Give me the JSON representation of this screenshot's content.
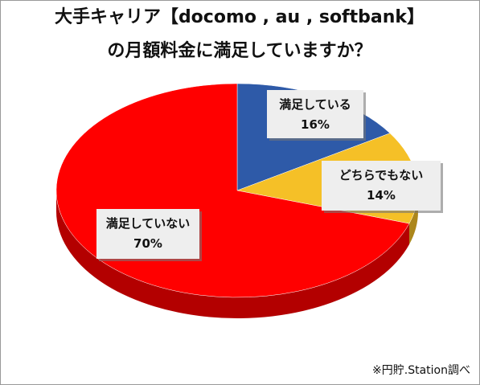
{
  "chart_data": {
    "type": "pie",
    "title": [
      "大手キャリア【docomo , au , softbank】",
      "の月額料金に満足していますか？"
    ],
    "categories": [
      "満足している",
      "どちらでもない",
      "満足していない"
    ],
    "values": [
      16,
      14,
      70
    ],
    "value_labels": [
      "16%",
      "14%",
      "70%"
    ],
    "colors": [
      "#2e5aa8",
      "#f5c027",
      "#ff0000"
    ],
    "source": "※円貯.Station調べ"
  }
}
